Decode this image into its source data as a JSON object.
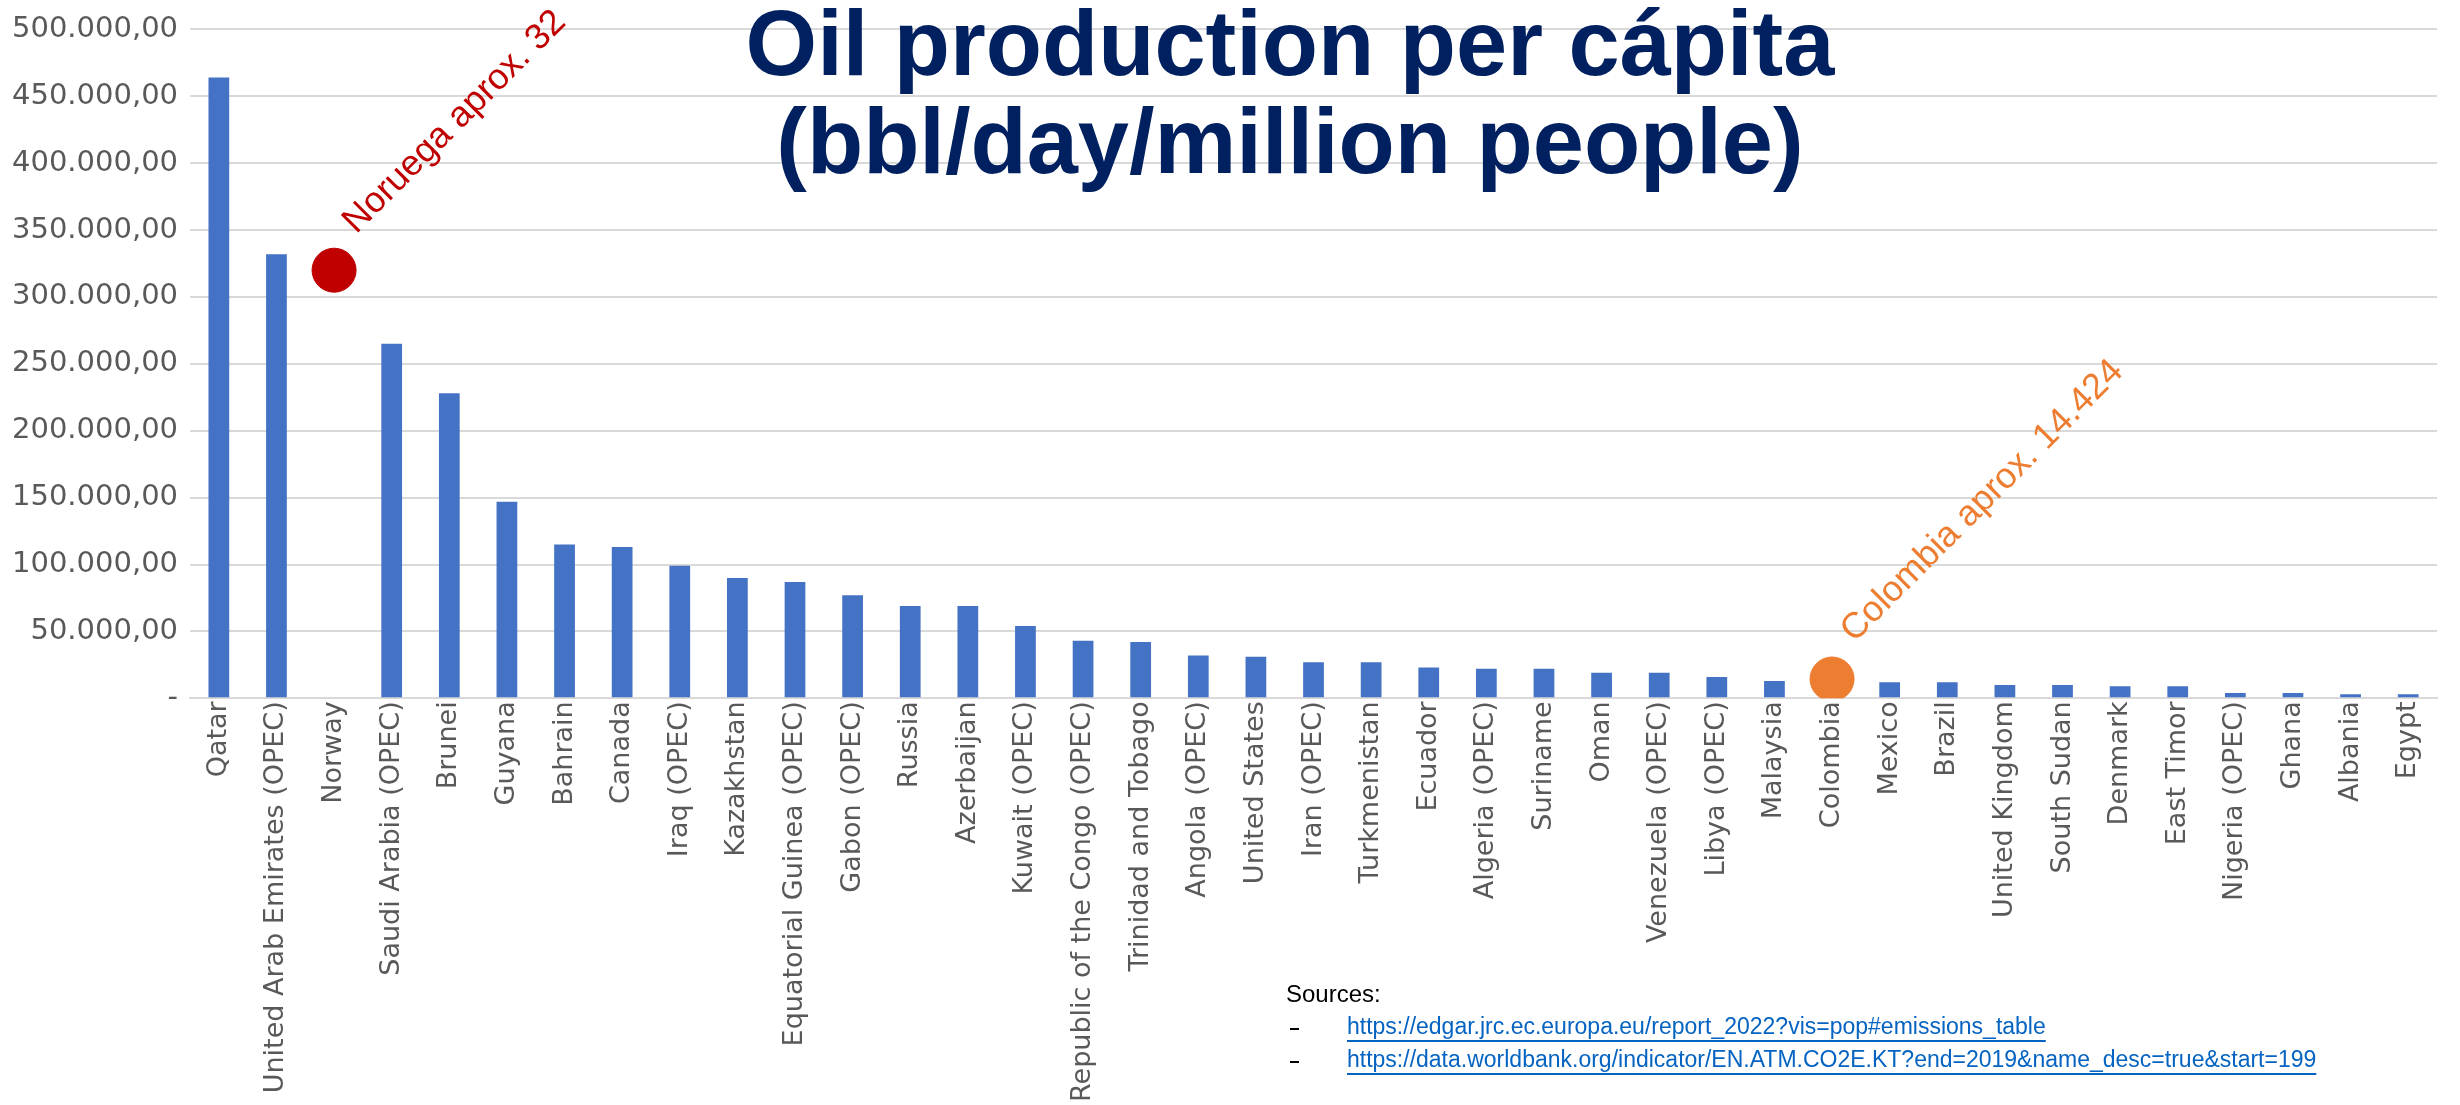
{
  "chart_data": {
    "type": "bar",
    "title": "Oil production per cápita (bbl/day/million people)",
    "categories": [
      "Qatar",
      "United Arab Emirates (OPEC)",
      "Norway",
      "Saudi Arabia (OPEC)",
      "Brunei",
      "Guyana",
      "Bahrain",
      "Canada",
      "Iraq (OPEC)",
      "Kazakhstan",
      "Equatorial Guinea (OPEC)",
      "Gabon (OPEC)",
      "Russia",
      "Azerbaijan",
      "Kuwait (OPEC)",
      "Republic of the Congo (OPEC)",
      "Trinidad and Tobago",
      "Angola (OPEC)",
      "United States",
      "Iran (OPEC)",
      "Turkmenistan",
      "Ecuador",
      "Algeria (OPEC)",
      "Suriname",
      "Oman",
      "Venezuela (OPEC)",
      "Libya (OPEC)",
      "Malaysia",
      "Colombia",
      "Mexico",
      "Brazil",
      "United Kingdom",
      "South Sudan",
      "Denmark",
      "East Timor",
      "Nigeria (OPEC)",
      "Ghana",
      "Albania",
      "Egypt"
    ],
    "series": [
      {
        "color": "#4472c4",
        "values": [
          464000,
          332000,
          null,
          265000,
          228000,
          147000,
          115000,
          113000,
          99000,
          90000,
          87000,
          77000,
          69000,
          69000,
          54000,
          43000,
          42000,
          32000,
          31000,
          27000,
          27000,
          23000,
          22000,
          22000,
          19000,
          19000,
          16000,
          13000,
          null,
          12000,
          12000,
          10000,
          10000,
          9000,
          9000,
          4000,
          4000,
          3000,
          3000
        ]
      },
      {
        "type": "scatter",
        "x": [
          "Norway",
          "Colombia"
        ],
        "values": [
          320000,
          14424
        ],
        "colors": [
          "#c00000",
          "#ed7d31"
        ]
      }
    ],
    "ylim": [
      0,
      500000
    ],
    "yticks": [
      {
        "value": 0,
        "label": "-"
      },
      {
        "value": 50000,
        "label": "50.000,00"
      },
      {
        "value": 100000,
        "label": "100.000,00"
      },
      {
        "value": 150000,
        "label": "150.000,00"
      },
      {
        "value": 200000,
        "label": "200.000,00"
      },
      {
        "value": 250000,
        "label": "250.000,00"
      },
      {
        "value": 300000,
        "label": "300.000,00"
      },
      {
        "value": 350000,
        "label": "350.000,00"
      },
      {
        "value": 400000,
        "label": "400.000,00"
      },
      {
        "value": 450000,
        "label": "450.000,00"
      },
      {
        "value": 500000,
        "label": "500.000,00"
      }
    ],
    "grid": "y",
    "legend": false,
    "marker": "circle",
    "annotations": [
      {
        "text": "Noruega aprox. 32",
        "x": "Norway",
        "y": 320000
      },
      {
        "text": "Colombia aprox. 14.424",
        "x": "Colombia",
        "y": 14424
      },
      "Sources:",
      "https://edgar.jrc.ec.europa.eu/report_2022?vis=pop#emissions_table",
      "https://data.worldbank.org/indicator/EN.ATM.CO2E.KT?end=2019&name_desc=true&start=199"
    ]
  }
}
